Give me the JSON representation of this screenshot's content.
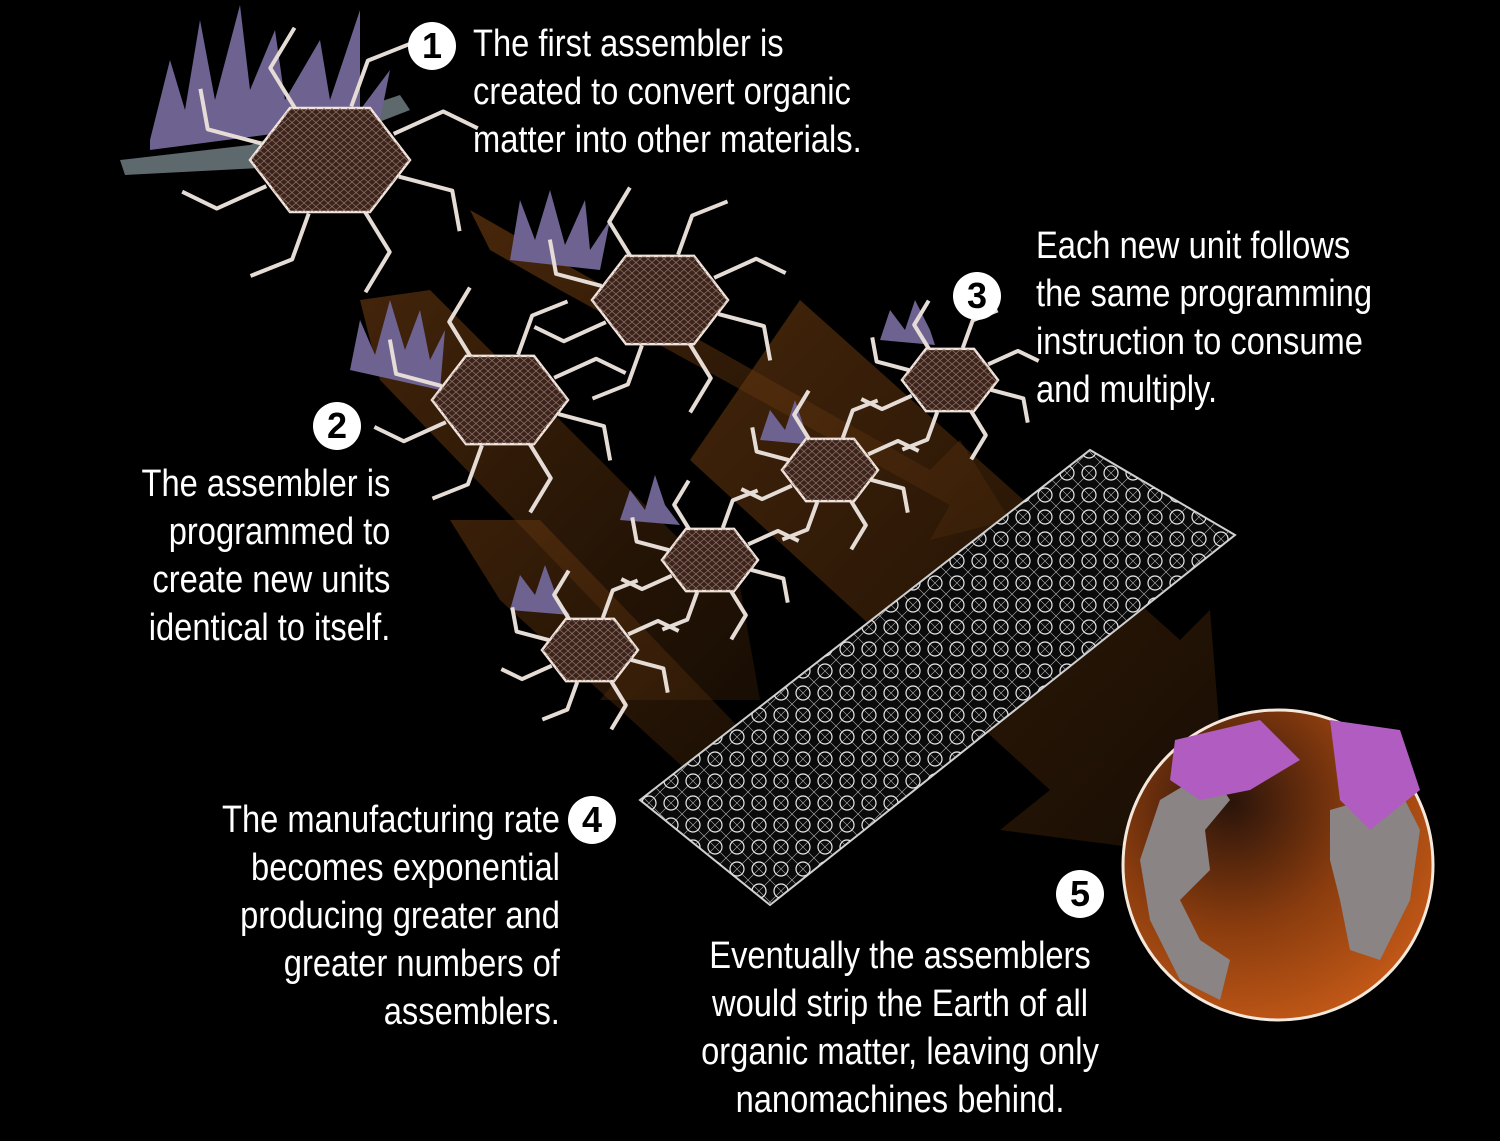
{
  "steps": [
    {
      "number": "1",
      "lines": [
        "The first assembler is",
        "created to convert organic",
        "matter into other materials."
      ]
    },
    {
      "number": "2",
      "lines": [
        "The assembler is",
        "programmed to",
        "create new units",
        "identical to itself."
      ]
    },
    {
      "number": "3",
      "lines": [
        "Each new unit follows",
        "the same programming",
        "instruction to consume",
        "and multiply."
      ]
    },
    {
      "number": "4",
      "lines": [
        "The manufacturing rate",
        "becomes exponential",
        "producing greater and",
        "greater numbers of",
        "assemblers."
      ]
    },
    {
      "number": "5",
      "lines": [
        "Eventually the assemblers",
        "would strip the Earth of all",
        "organic matter, leaving only",
        "nanomachines behind."
      ]
    }
  ],
  "colors": {
    "background": "#000000",
    "arrow": "#6b3a10",
    "assembler_body": "#3a231c",
    "grass": "#6e6290",
    "earth_ocean": "#b8541a",
    "earth_land": "#8a8484",
    "earth_consumed": "#b05cc0"
  },
  "icons": [
    "assembler-robot-icon",
    "earth-globe-icon",
    "nanomachine-mesh-icon"
  ]
}
